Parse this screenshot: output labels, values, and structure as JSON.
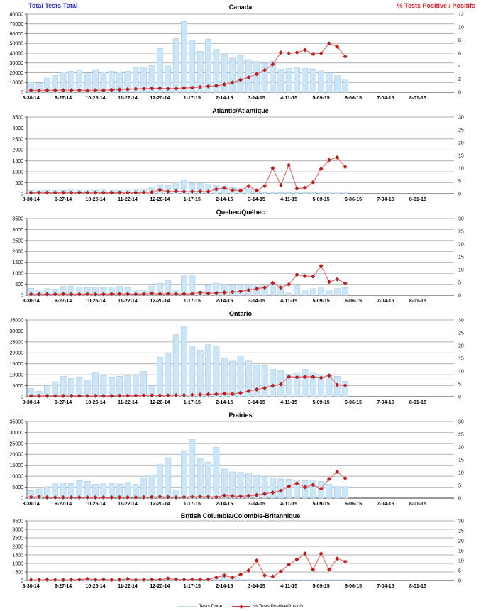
{
  "page": {
    "background": "#FFFFFF"
  },
  "header": {
    "left_label": "Total Tests Total",
    "right_label": "% Tests Positive / Positifs"
  },
  "legend": {
    "tests_done": "Tests Done",
    "pct_positive": "% Tests Positive/Positifs"
  },
  "chart_data": {
    "type": "bar+line",
    "x_tick_labels": [
      "8-30-14",
      "9-27-14",
      "10-25-14",
      "11-22-14",
      "12-20-14",
      "1-17-15",
      "2-14-15",
      "3-14-15",
      "4-11-15",
      "5-09-15",
      "6-06-15",
      "7-04-15",
      "8-01-15"
    ],
    "weeks": 40,
    "slots": 53,
    "legend_position": "bottom-center",
    "grid": "horizontal",
    "colors": {
      "bar_fill": "#CBE6FA",
      "bar_border": "#9DC4DD",
      "line": "#E07878",
      "marker": "#CC1A1A",
      "marker_border": "#801010",
      "grid": "#999999",
      "axis": "#333333",
      "text": "#000000",
      "header_blue": "#3333CC",
      "header_red": "#E02020"
    },
    "panels": [
      {
        "title": "Canada",
        "left_axis": {
          "label": "Total Tests Total",
          "max": 80000,
          "step": 10000
        },
        "right_axis": {
          "label": "% Tests Positive / Positifs",
          "max": 12,
          "step": 2
        },
        "tests": [
          10500,
          9500,
          14500,
          17800,
          20800,
          21500,
          22000,
          19000,
          23300,
          21000,
          21500,
          21000,
          21500,
          25500,
          26000,
          27500,
          45000,
          27000,
          55000,
          72500,
          53500,
          42000,
          54500,
          44000,
          39000,
          35000,
          37500,
          33500,
          31500,
          29500,
          32000,
          23500,
          24500,
          25000,
          24500,
          24000,
          22000,
          20000,
          17000,
          13500
        ],
        "pct_positive": [
          0.3,
          0.25,
          0.3,
          0.3,
          0.3,
          0.3,
          0.3,
          0.25,
          0.3,
          0.3,
          0.35,
          0.4,
          0.45,
          0.5,
          0.55,
          0.6,
          0.6,
          0.55,
          0.6,
          0.65,
          0.7,
          0.8,
          0.9,
          1.0,
          1.2,
          1.5,
          1.9,
          2.3,
          2.8,
          3.4,
          4.3,
          6.1,
          6.0,
          6.1,
          6.5,
          5.9,
          6.0,
          7.5,
          7.0,
          5.5
        ]
      },
      {
        "title": "Atlantic/Atlantique",
        "left_axis": {
          "max": 3500,
          "step": 500
        },
        "right_axis": {
          "max": 30,
          "step": 5
        },
        "tests": [
          150,
          140,
          160,
          150,
          160,
          170,
          160,
          150,
          160,
          170,
          160,
          150,
          160,
          180,
          200,
          300,
          420,
          380,
          520,
          620,
          480,
          480,
          430,
          380,
          330,
          280,
          240,
          230,
          200,
          60,
          60,
          60,
          60,
          50,
          50,
          50,
          40,
          40,
          40,
          40
        ],
        "pct_positive": [
          0.4,
          0.4,
          0.4,
          0.4,
          0.4,
          0.4,
          0.4,
          0.4,
          0.4,
          0.4,
          0.4,
          0.4,
          0.4,
          0.4,
          0.5,
          0.6,
          1.5,
          0.8,
          1.0,
          0.8,
          0.8,
          0.9,
          0.8,
          1.8,
          2.3,
          1.4,
          1.2,
          3.0,
          1.3,
          3.0,
          10.0,
          3.4,
          11.2,
          2.0,
          2.3,
          4.5,
          9.7,
          13.2,
          14.2,
          10.5
        ]
      },
      {
        "title": "Quebec/Québec",
        "left_axis": {
          "max": 3500,
          "step": 500
        },
        "right_axis": {
          "max": 30,
          "step": 5
        },
        "tests": [
          320,
          250,
          300,
          280,
          400,
          420,
          380,
          350,
          380,
          350,
          330,
          400,
          350,
          200,
          250,
          420,
          550,
          680,
          250,
          880,
          880,
          180,
          450,
          550,
          500,
          450,
          480,
          500,
          420,
          480,
          500,
          380,
          100,
          450,
          250,
          300,
          380,
          250,
          300,
          350
        ],
        "pct_positive": [
          0.4,
          0.4,
          0.4,
          0.4,
          0.5,
          0.4,
          0.4,
          0.5,
          0.4,
          0.4,
          0.5,
          0.5,
          0.5,
          0.4,
          0.5,
          0.7,
          0.5,
          0.6,
          0.5,
          0.5,
          0.6,
          1.0,
          0.7,
          0.9,
          1.1,
          1.3,
          1.5,
          2.0,
          2.5,
          3.0,
          4.8,
          3.0,
          4.2,
          8.0,
          7.5,
          7.3,
          11.5,
          5.2,
          6.2,
          4.7
        ]
      },
      {
        "title": "Ontario",
        "left_axis": {
          "max": 35000,
          "step": 5000
        },
        "right_axis": {
          "max": 30,
          "step": 5
        },
        "tests": [
          3800,
          2500,
          5000,
          6800,
          9300,
          8300,
          9000,
          7500,
          11200,
          9700,
          9000,
          9300,
          9700,
          10100,
          11500,
          5000,
          18000,
          19800,
          28500,
          32200,
          22800,
          21300,
          23800,
          22800,
          17800,
          16200,
          18500,
          16300,
          14500,
          14200,
          12500,
          11800,
          10300,
          11000,
          12500,
          11000,
          10000,
          9700,
          9300,
          7000
        ],
        "pct_positive": [
          0.3,
          0.3,
          0.3,
          0.3,
          0.3,
          0.3,
          0.3,
          0.3,
          0.3,
          0.3,
          0.3,
          0.35,
          0.4,
          0.4,
          0.45,
          0.5,
          0.5,
          0.5,
          0.55,
          0.6,
          0.7,
          0.8,
          0.9,
          1.0,
          1.2,
          1.1,
          1.5,
          2.2,
          2.8,
          3.4,
          4.3,
          4.8,
          7.8,
          7.6,
          7.8,
          7.8,
          7.4,
          8.3,
          4.6,
          4.4
        ]
      },
      {
        "title": "Prairies",
        "left_axis": {
          "max": 35000,
          "step": 5000
        },
        "right_axis": {
          "max": 30,
          "step": 5
        },
        "tests": [
          3500,
          4200,
          5200,
          7000,
          6800,
          6800,
          8000,
          7700,
          6300,
          7000,
          6800,
          6500,
          7200,
          6300,
          9300,
          10500,
          15300,
          18500,
          3800,
          21700,
          26800,
          18000,
          16500,
          23300,
          13300,
          12000,
          11800,
          11500,
          10300,
          10000,
          9300,
          8800,
          8700,
          8300,
          8000,
          8300,
          7700,
          6300,
          5300,
          5300
        ],
        "pct_positive": [
          0.4,
          0.5,
          0.3,
          0.3,
          0.3,
          0.3,
          0.3,
          0.3,
          0.3,
          0.3,
          0.3,
          0.3,
          0.3,
          0.3,
          0.35,
          0.4,
          0.5,
          0.4,
          0.3,
          0.4,
          0.5,
          0.6,
          0.5,
          0.4,
          1.0,
          0.8,
          0.7,
          0.9,
          1.2,
          1.7,
          2.2,
          2.9,
          4.6,
          5.8,
          4.3,
          5.2,
          3.7,
          7.5,
          10.3,
          7.8
        ]
      },
      {
        "title": "British Columbia/Colombie-Britannique",
        "left_axis": {
          "max": 3500,
          "step": 500
        },
        "right_axis": {
          "max": 30,
          "step": 5
        },
        "tests": [
          30,
          30,
          30,
          30,
          30,
          30,
          30,
          30,
          30,
          30,
          30,
          30,
          30,
          30,
          30,
          30,
          40,
          40,
          150,
          60,
          80,
          60,
          60,
          100,
          380,
          160,
          60,
          50,
          40,
          40,
          40,
          40,
          40,
          40,
          40,
          40,
          40,
          40,
          40,
          40
        ],
        "pct_positive": [
          0.3,
          0.3,
          0.4,
          0.3,
          0.3,
          0.4,
          0.4,
          0.8,
          0.4,
          0.5,
          0.3,
          0.4,
          0.8,
          0.3,
          0.4,
          0.5,
          0.4,
          1.0,
          0.5,
          0.4,
          0.5,
          0.5,
          0.5,
          1.5,
          2.5,
          1.5,
          3.0,
          5.0,
          10.0,
          2.5,
          2.0,
          4.5,
          8.0,
          10.6,
          13.5,
          5.5,
          13.5,
          5.5,
          11.0,
          9.5
        ]
      }
    ]
  }
}
